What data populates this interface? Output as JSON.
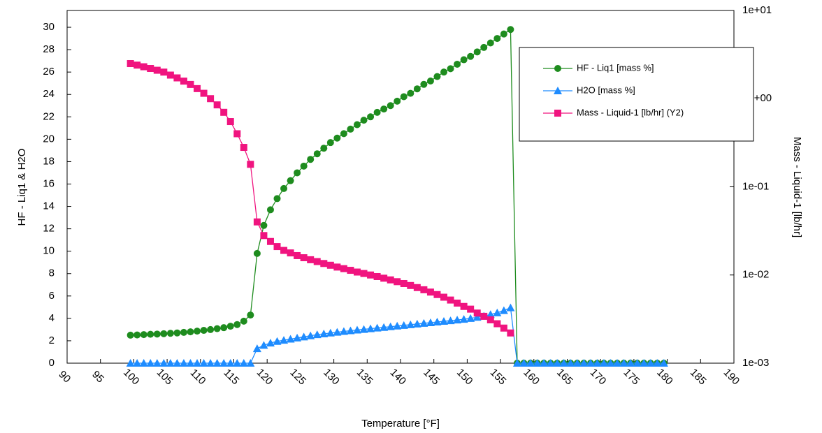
{
  "chart_data": {
    "type": "line",
    "xlabel": "Temperature [°F]",
    "ylabel": "HF - Liq1 & H2O",
    "y2label": "Mass - Liquid-1 [lb/hr]",
    "x": [
      99.5,
      100.5,
      101.5,
      102.5,
      103.5,
      104.5,
      105.5,
      106.5,
      107.5,
      108.5,
      109.5,
      110.5,
      111.5,
      112.5,
      113.5,
      114.5,
      115.5,
      116.5,
      117.5,
      118.5,
      119.5,
      120.5,
      121.5,
      122.5,
      123.5,
      124.5,
      125.5,
      126.5,
      127.5,
      128.5,
      129.5,
      130.5,
      131.5,
      132.5,
      133.5,
      134.5,
      135.5,
      136.5,
      137.5,
      138.5,
      139.5,
      140.5,
      141.5,
      142.5,
      143.5,
      144.5,
      145.5,
      146.5,
      147.5,
      148.5,
      149.5,
      150.5,
      151.5,
      152.5,
      153.5,
      154.5,
      155.5,
      156.5,
      157.5,
      158.5,
      159.5,
      160.5,
      161.5,
      162.5,
      163.5,
      164.5,
      165.5,
      166.5,
      167.5,
      168.5,
      169.5,
      170.5,
      171.5,
      172.5,
      173.5,
      174.5,
      175.5,
      176.5,
      177.5,
      178.5,
      179.5
    ],
    "series": [
      {
        "name": "HF - Liq1 [mass %]",
        "color": "#1e8c1e",
        "marker": "circle",
        "values": [
          2.5,
          2.52,
          2.55,
          2.58,
          2.6,
          2.63,
          2.67,
          2.7,
          2.75,
          2.8,
          2.86,
          2.93,
          3.0,
          3.08,
          3.17,
          3.3,
          3.45,
          3.75,
          4.3,
          9.8,
          12.3,
          13.7,
          14.7,
          15.6,
          16.3,
          17.0,
          17.6,
          18.2,
          18.7,
          19.2,
          19.7,
          20.1,
          20.5,
          20.9,
          21.3,
          21.7,
          22.0,
          22.4,
          22.7,
          23.0,
          23.4,
          23.8,
          24.1,
          24.5,
          24.9,
          25.2,
          25.6,
          26.0,
          26.3,
          26.7,
          27.1,
          27.4,
          27.8,
          28.2,
          28.6,
          29.0,
          29.4,
          29.8,
          0,
          0,
          0,
          0,
          0,
          0,
          0,
          0,
          0,
          0,
          0,
          0,
          0,
          0,
          0,
          0,
          0,
          0,
          0,
          0,
          0,
          0,
          0
        ]
      },
      {
        "name": "H2O [mass %]",
        "color": "#1e8cff",
        "marker": "triangle",
        "values": [
          0,
          0,
          0,
          0,
          0,
          0,
          0,
          0,
          0,
          0,
          0,
          0,
          0,
          0,
          0,
          0,
          0,
          0,
          0,
          1.3,
          1.6,
          1.8,
          1.95,
          2.05,
          2.15,
          2.25,
          2.35,
          2.45,
          2.55,
          2.62,
          2.7,
          2.77,
          2.84,
          2.9,
          2.96,
          3.02,
          3.08,
          3.14,
          3.2,
          3.26,
          3.32,
          3.38,
          3.44,
          3.5,
          3.56,
          3.62,
          3.68,
          3.74,
          3.8,
          3.86,
          3.92,
          4.0,
          4.1,
          4.2,
          4.35,
          4.5,
          4.7,
          4.95,
          0,
          0,
          0,
          0,
          0,
          0,
          0,
          0,
          0,
          0,
          0,
          0,
          0,
          0,
          0,
          0,
          0,
          0,
          0,
          0,
          0,
          0,
          0
        ]
      },
      {
        "name": "Mass - Liquid-1 [lb/hr] (Y2)",
        "color": "#f0147f",
        "marker": "square",
        "axis": "y2",
        "values": [
          2.5,
          2.4,
          2.3,
          2.2,
          2.1,
          2.0,
          1.85,
          1.72,
          1.58,
          1.45,
          1.3,
          1.15,
          1.0,
          0.85,
          0.7,
          0.55,
          0.4,
          0.28,
          0.18,
          0.04,
          0.028,
          0.024,
          0.021,
          0.019,
          0.0178,
          0.0166,
          0.0157,
          0.0149,
          0.0142,
          0.0135,
          0.0129,
          0.0123,
          0.0118,
          0.0113,
          0.0108,
          0.0104,
          0.01,
          0.0096,
          0.0092,
          0.0088,
          0.0084,
          0.008,
          0.0076,
          0.0072,
          0.0068,
          0.0064,
          0.006,
          0.0056,
          0.0052,
          0.0048,
          0.0044,
          0.0041,
          0.0037,
          0.0034,
          0.0031,
          0.0028,
          0.0025,
          0.0022,
          null,
          null,
          null,
          null,
          null,
          null,
          null,
          null,
          null,
          null,
          null,
          null,
          null,
          null,
          null,
          null,
          null,
          null,
          null,
          null,
          null,
          null,
          null
        ]
      }
    ],
    "xlim": [
      90,
      190
    ],
    "xticks": [
      90,
      95,
      100,
      105,
      110,
      115,
      120,
      125,
      130,
      135,
      140,
      145,
      150,
      155,
      160,
      165,
      170,
      175,
      180,
      185,
      190
    ],
    "ylim": [
      0,
      31.5
    ],
    "yticks": [
      0,
      2,
      4,
      6,
      8,
      10,
      12,
      14,
      16,
      18,
      20,
      22,
      24,
      26,
      28,
      30
    ],
    "y2lim": [
      0.001,
      10
    ],
    "y2scale": "log",
    "y2ticks": [
      {
        "value": 0.001,
        "label": "1e-03"
      },
      {
        "value": 0.01,
        "label": "1e-02"
      },
      {
        "value": 0.1,
        "label": "1e-01"
      },
      {
        "value": 1,
        "label": "1e+00"
      },
      {
        "value": 10,
        "label": "1e+01"
      }
    ],
    "legend": "upper right"
  }
}
